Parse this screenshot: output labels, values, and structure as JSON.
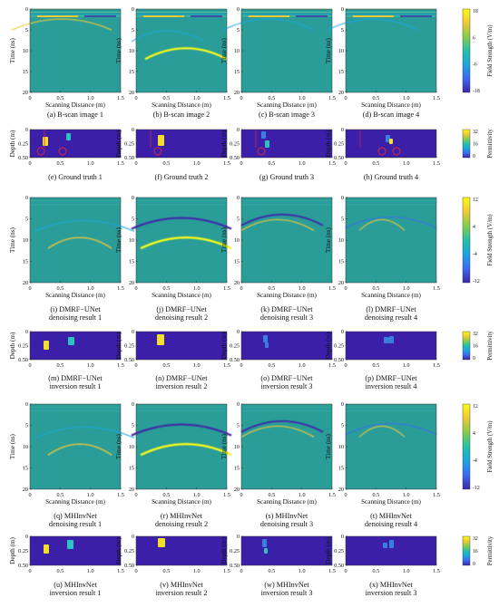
{
  "figure": {
    "rows": [
      {
        "type": "bscan",
        "ylabel": "Time (ns)",
        "xlabel": "Scanning Distance (m)",
        "yticks": [
          "0",
          "5",
          "10",
          "15",
          "20"
        ],
        "xticks": [
          "0",
          "0.5",
          "1.0",
          "1.5"
        ],
        "colorbar": {
          "label": "Field Strength (V/m)",
          "ticks": [
            "18",
            "6",
            "-6",
            "-18"
          ]
        },
        "captions": [
          [
            "(a) B-scan image 1"
          ],
          [
            "(b) B-scan image 2"
          ],
          [
            "(c) B-scan image 3"
          ],
          [
            "(d) B-scan image 4"
          ]
        ]
      },
      {
        "type": "perm",
        "ylabel": "Depth (m)",
        "yticks": [
          "0",
          "0.25",
          "0.50"
        ],
        "xticks": [
          "0",
          "0.5",
          "1.0",
          "1.5"
        ],
        "colorbar": {
          "label": "Permittivity",
          "ticks": [
            "32",
            "16",
            "0"
          ]
        },
        "captions": [
          [
            "(e) Ground truth 1"
          ],
          [
            "(f) Ground truth 2"
          ],
          [
            "(g) Ground truth 3"
          ],
          [
            "(h) Ground truth 4"
          ]
        ]
      },
      {
        "type": "bscan",
        "ylabel": "Time (ns)",
        "xlabel": "Scanning Distance (m)",
        "yticks": [
          "0",
          "5",
          "10",
          "15",
          "20"
        ],
        "xticks": [
          "0",
          "0.5",
          "1.0",
          "1.5"
        ],
        "colorbar": {
          "label": "Field Strength (V/m)",
          "ticks": [
            "12",
            "4",
            "-4",
            "-12"
          ]
        },
        "captions": [
          [
            "(i) DMRF−UNet",
            "denoising result 1"
          ],
          [
            "(j) DMRF−UNet",
            "denoising result 2"
          ],
          [
            "(k) DMRF−UNet",
            "denoising result 3"
          ],
          [
            "(l) DMRF−UNet",
            "denoising result 4"
          ]
        ]
      },
      {
        "type": "perm",
        "ylabel": "Depth (m)",
        "yticks": [
          "0",
          "0.25",
          "0.50"
        ],
        "xticks": [
          "0",
          "0.5",
          "1.0",
          "1.5"
        ],
        "colorbar": {
          "label": "Permittivity",
          "ticks": [
            "32",
            "16",
            "0"
          ]
        },
        "captions": [
          [
            "(m) DMRF−UNet",
            "inversion result 1"
          ],
          [
            "(n) DMRF−UNet",
            "inversion result 2"
          ],
          [
            "(o) DMRF−UNet",
            "inversion result 3"
          ],
          [
            "(p) DMRF−UNet",
            "inversion result 4"
          ]
        ]
      },
      {
        "type": "bscan",
        "ylabel": "Time (ns)",
        "xlabel": "Scanning Distance (m)",
        "yticks": [
          "0",
          "5",
          "10",
          "15",
          "20"
        ],
        "xticks": [
          "0",
          "0.5",
          "1.0",
          "1.5"
        ],
        "colorbar": {
          "label": "Field Strength (V/m)",
          "ticks": [
            "12",
            "4",
            "-4",
            "-12"
          ]
        },
        "captions": [
          [
            "(q) MHInvNet",
            "denoising result 1"
          ],
          [
            "(r) MHInvNet",
            "denoising result 2"
          ],
          [
            "(s) MHInvNet",
            "denoising result 3"
          ],
          [
            "(t) MHInvNet",
            "denoising result 4"
          ]
        ]
      },
      {
        "type": "perm",
        "ylabel": "Depth (m)",
        "yticks": [
          "0",
          "0.25",
          "0.50"
        ],
        "xticks": [
          "0",
          "0.5",
          "1.0",
          "1.5"
        ],
        "colorbar": {
          "label": "Permittivity",
          "ticks": [
            "32",
            "16",
            "0"
          ]
        },
        "captions": [
          [
            "(u) MHInvNet",
            "inversion result 1"
          ],
          [
            "(v) MHInvNet",
            "inversion result 2"
          ],
          [
            "(w) MHInvNet",
            "inversion result 3"
          ],
          [
            "(x) MHInvNet",
            "inversion result 3"
          ]
        ]
      }
    ]
  },
  "colors": {
    "bscan_background": "#2a9d99",
    "perm_background": "#3b1fa8",
    "target_yellow": "#f4de2a",
    "target_cyan": "#2dc2c2",
    "target_blue": "#3a7fe0",
    "marker_red": "#e0283a",
    "colormap": [
      "#3e26a8",
      "#3a6bf0",
      "#1ea6de",
      "#26c0a8",
      "#88cc4c",
      "#f2c936",
      "#f9fb15"
    ]
  }
}
